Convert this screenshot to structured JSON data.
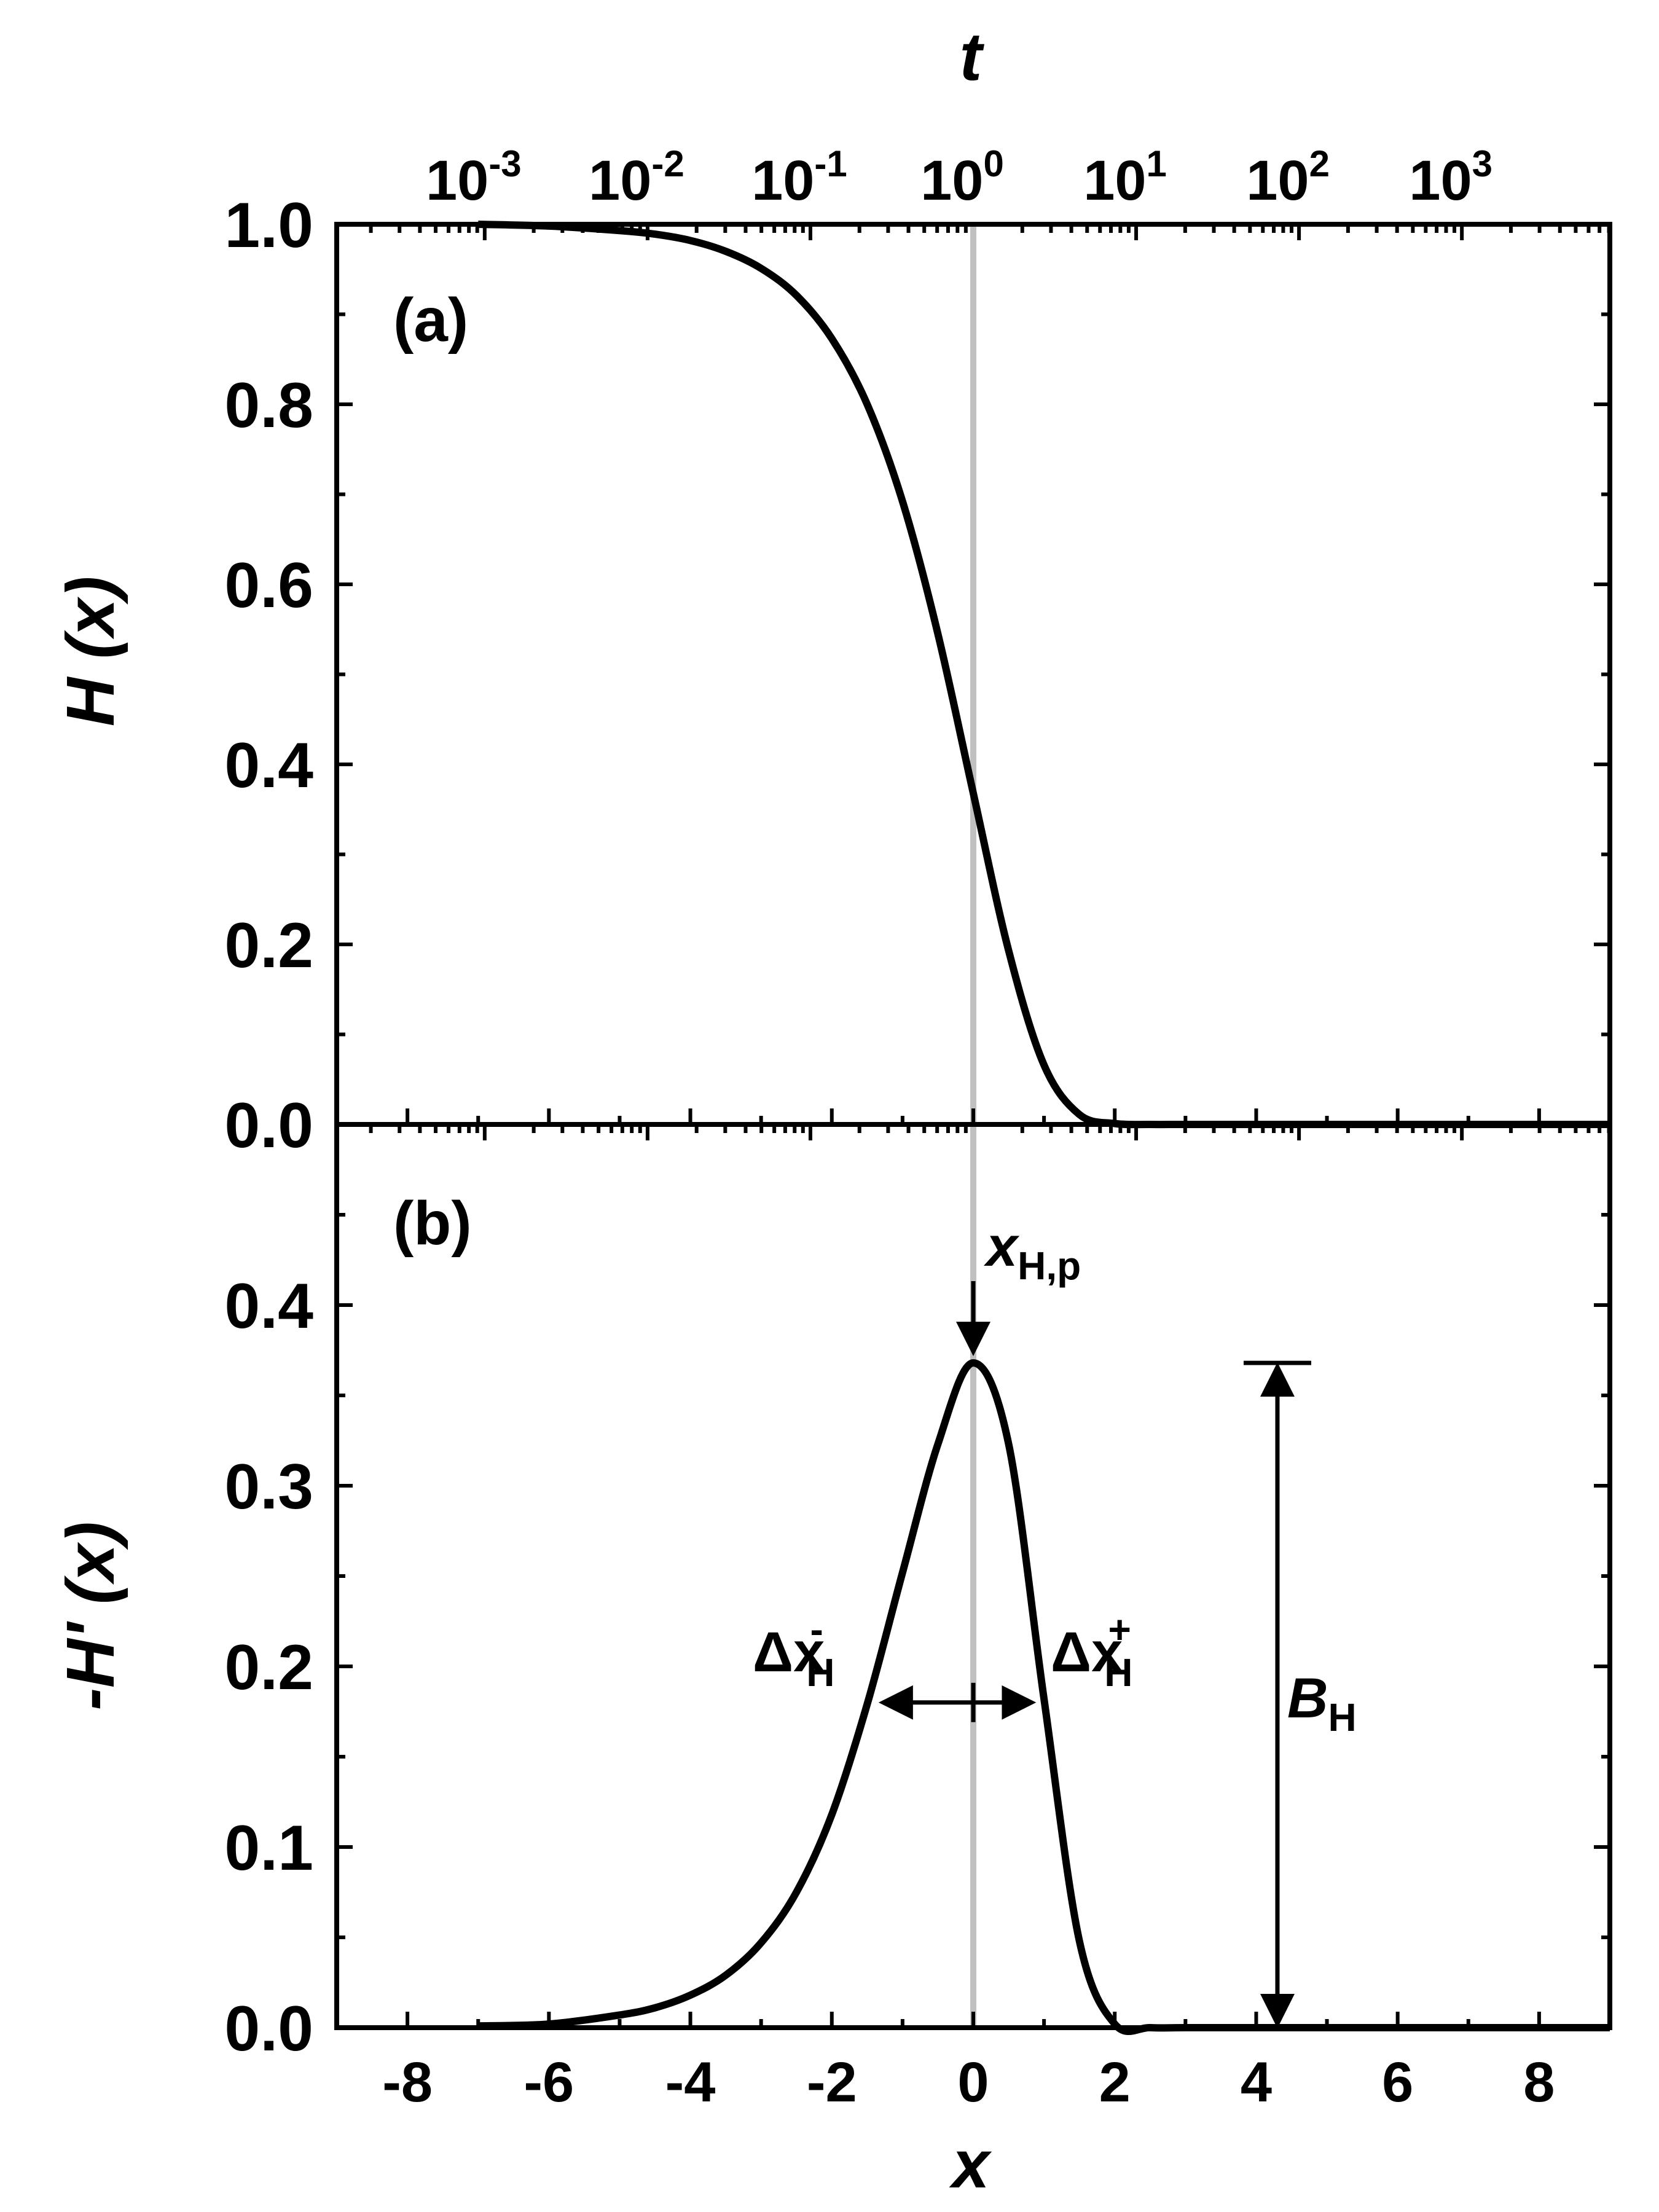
{
  "top_axis": {
    "title": "t",
    "tick_labels": [
      {
        "base": "10",
        "exp": "-3",
        "x": -6.9078
      },
      {
        "base": "10",
        "exp": "-2",
        "x": -4.6052
      },
      {
        "base": "10",
        "exp": "-1",
        "x": -2.3026
      },
      {
        "base": "10",
        "exp": "0",
        "x": 0.0
      },
      {
        "base": "10",
        "exp": "1",
        "x": 2.3026
      },
      {
        "base": "10",
        "exp": "2",
        "x": 4.6052
      },
      {
        "base": "10",
        "exp": "3",
        "x": 6.9078
      }
    ]
  },
  "chart_data": [
    {
      "type": "line",
      "panel_label": "(a)",
      "ylabel": "H (x)",
      "xlim": [
        -9,
        9
      ],
      "ylim": [
        0,
        1
      ],
      "ytick_labels": [
        "0.0",
        "0.2",
        "0.4",
        "0.6",
        "0.8",
        "1.0"
      ],
      "series": [
        {
          "x": [
            -7.0,
            -6.0,
            -5.0,
            -4.5,
            -4.0,
            -3.5,
            -3.0,
            -2.5,
            -2.0,
            -1.5,
            -1.0,
            -0.5,
            0.0,
            0.5,
            1.0,
            1.5,
            2.0,
            2.5,
            3.0,
            4.0,
            6.0,
            9.0
          ],
          "y": [
            1.0,
            0.998,
            0.993,
            0.989,
            0.982,
            0.97,
            0.951,
            0.921,
            0.873,
            0.8,
            0.692,
            0.545,
            0.368,
            0.193,
            0.066,
            0.011,
            0.001,
            0.0,
            0.0,
            0.0,
            0.0,
            0.0
          ]
        }
      ],
      "vertical_line": {
        "x": 0,
        "color": "#c0c0c0"
      }
    },
    {
      "type": "line",
      "panel_label": "(b)",
      "ylabel": "-H' (x)",
      "xlabel": "x",
      "xlim": [
        -9,
        9
      ],
      "ylim": [
        0,
        0.5
      ],
      "ytick_labels": [
        "0.0",
        "0.1",
        "0.2",
        "0.3",
        "0.4"
      ],
      "xtick_labels": [
        "-8",
        "-6",
        "-4",
        "-2",
        "0",
        "2",
        "4",
        "6",
        "8"
      ],
      "series": [
        {
          "x": [
            -7.0,
            -6.0,
            -5.0,
            -4.5,
            -4.0,
            -3.5,
            -3.0,
            -2.5,
            -2.0,
            -1.5,
            -1.0,
            -0.5,
            0.0,
            0.5,
            1.0,
            1.5,
            2.0,
            2.5,
            3.0,
            4.0,
            6.0,
            9.0
          ],
          "y": [
            0.001,
            0.002,
            0.007,
            0.011,
            0.018,
            0.029,
            0.047,
            0.075,
            0.118,
            0.179,
            0.252,
            0.323,
            0.368,
            0.323,
            0.182,
            0.048,
            0.002,
            0.0,
            0.0,
            0.0,
            0.0,
            0.0
          ]
        }
      ],
      "vertical_line": {
        "x": 0,
        "color": "#c0c0c0"
      },
      "annotations": {
        "peak": {
          "label": "x",
          "sub": "H,p",
          "x": 0,
          "y": 0.368
        },
        "width_minus": {
          "label": "Δx",
          "sub": "H",
          "sup": "-",
          "x": -1.4,
          "y": 0.18
        },
        "width_plus": {
          "label": "Δx",
          "sub": "H",
          "sup": "+",
          "x": 0.95,
          "y": 0.18
        },
        "height": {
          "label": "B",
          "sub": "H",
          "x": 4.3,
          "y_top": 0.368,
          "y_bottom": 0.0
        }
      }
    }
  ],
  "colors": {
    "curve": "#000000",
    "guide": "#c0c0c0",
    "background": "#ffffff"
  }
}
